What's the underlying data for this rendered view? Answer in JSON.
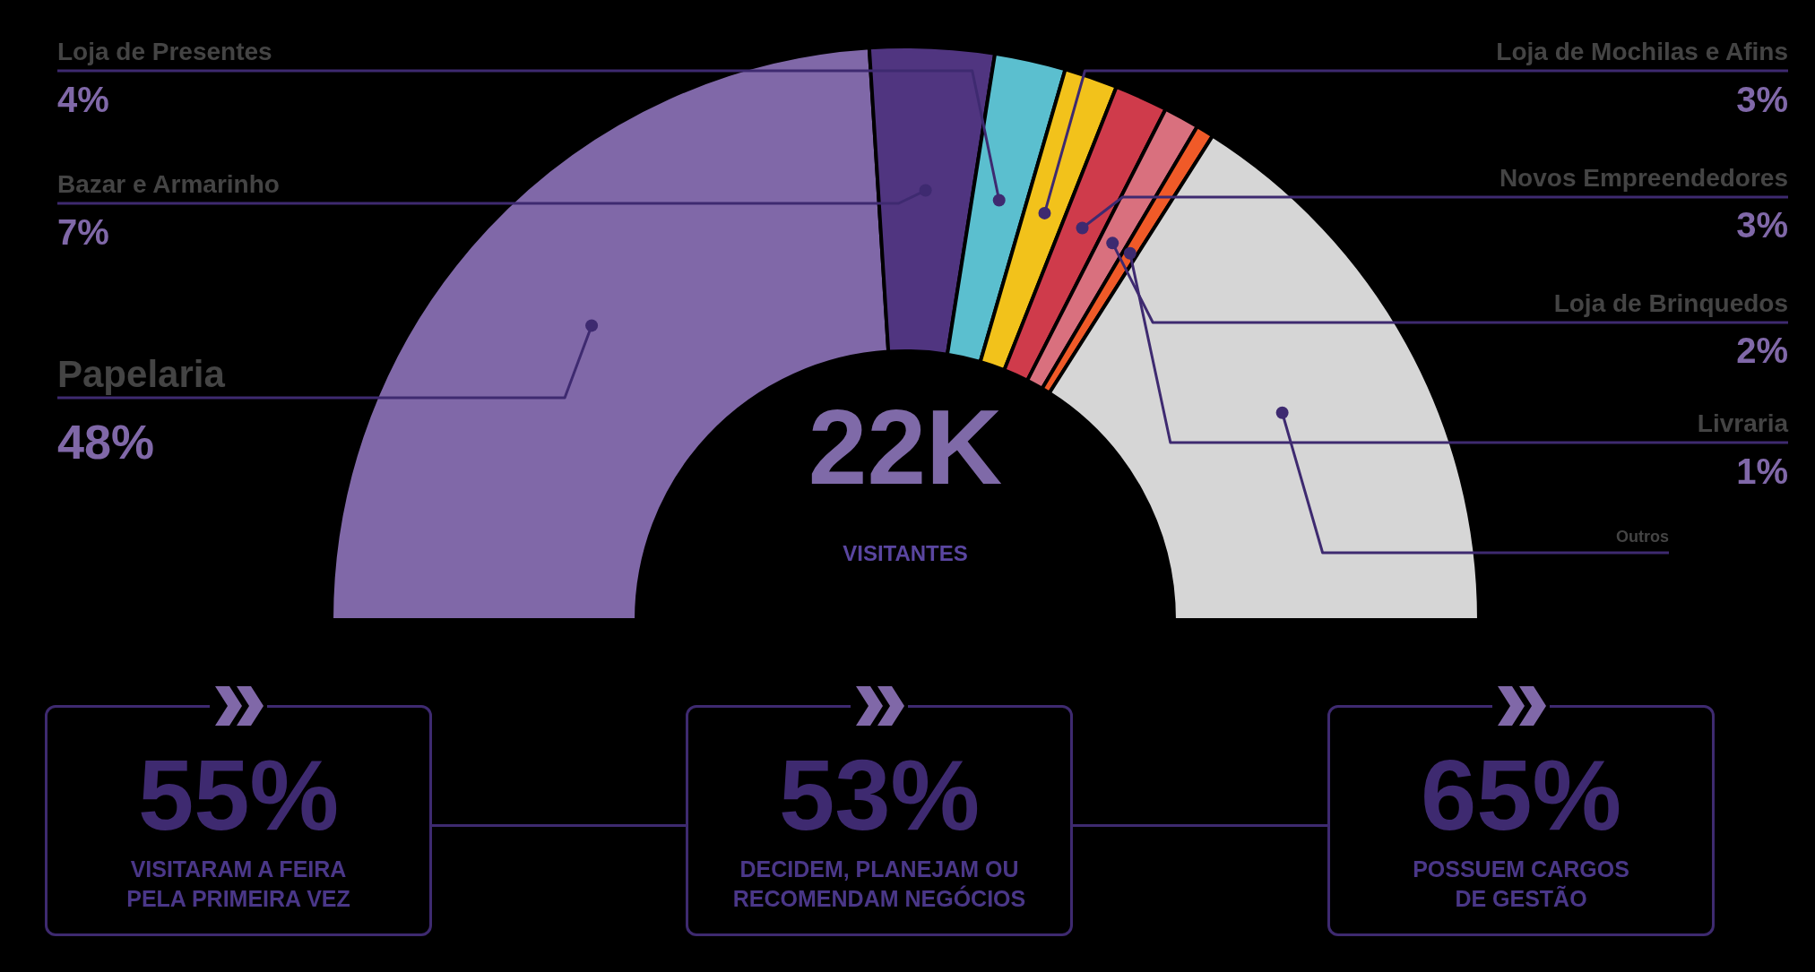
{
  "chart_data": {
    "type": "donut",
    "categories": [
      "Papelaria",
      "Bazar e Armarinho",
      "Loja de Presentes",
      "Loja de Mochilas e Afins",
      "Novos Empreendedores",
      "Loja de Brinquedos",
      "Livraria",
      "Outros"
    ],
    "values": [
      48,
      7,
      4,
      3,
      3,
      2,
      1,
      32
    ],
    "colors": [
      "#8068a8",
      "#503580",
      "#5bbfcf",
      "#f2c21b",
      "#cf3b4b",
      "#d9707e",
      "#f05a28",
      "#d6d6d6"
    ],
    "value_labels": [
      "48%",
      "7%",
      "4%",
      "3%",
      "3%",
      "2%",
      "1%",
      null
    ],
    "annotations": [
      "22K",
      "VISITANTES",
      "55%",
      "VISITARAM A FEIRA\nPELA PRIMEIRA VEZ",
      "53%",
      "DECIDEM, PLANEJAM OU\nRECOMENDAM NEGÓCIOS",
      "65%",
      "POSSUEM CARGOS\nDE GESTÃO"
    ]
  }
}
